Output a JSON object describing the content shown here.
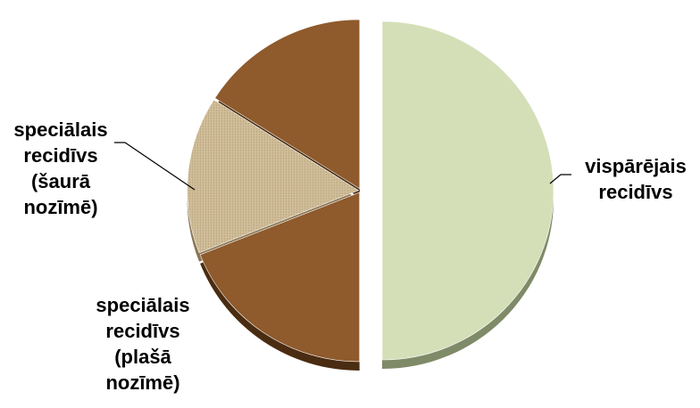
{
  "chart_data": {
    "type": "pie",
    "style": "3d-exploded",
    "categories": [
      "vispārējais recidīvs",
      "speciālais recidīvs (plašā nozīmē)",
      "speciālais recidīvs (šaurā nozīmē)",
      ""
    ],
    "values": [
      50,
      19,
      15,
      16
    ],
    "labels": [
      [
        "vispārējais",
        "recidīvs"
      ],
      [
        "speciālais",
        "recidīvs",
        "(plašā",
        "nozīmē)"
      ],
      [
        "speciālais",
        "recidīvs",
        "(šaurā",
        "nozīmē)"
      ],
      []
    ],
    "colors": [
      "#d4dfb8",
      "#8f5a2c",
      "#c8b38a",
      "#8f5a2c"
    ],
    "side_colors": [
      "#7f8a68",
      "#4a2c12",
      "#8a7655",
      "#4a2c12"
    ],
    "legend": "none"
  }
}
